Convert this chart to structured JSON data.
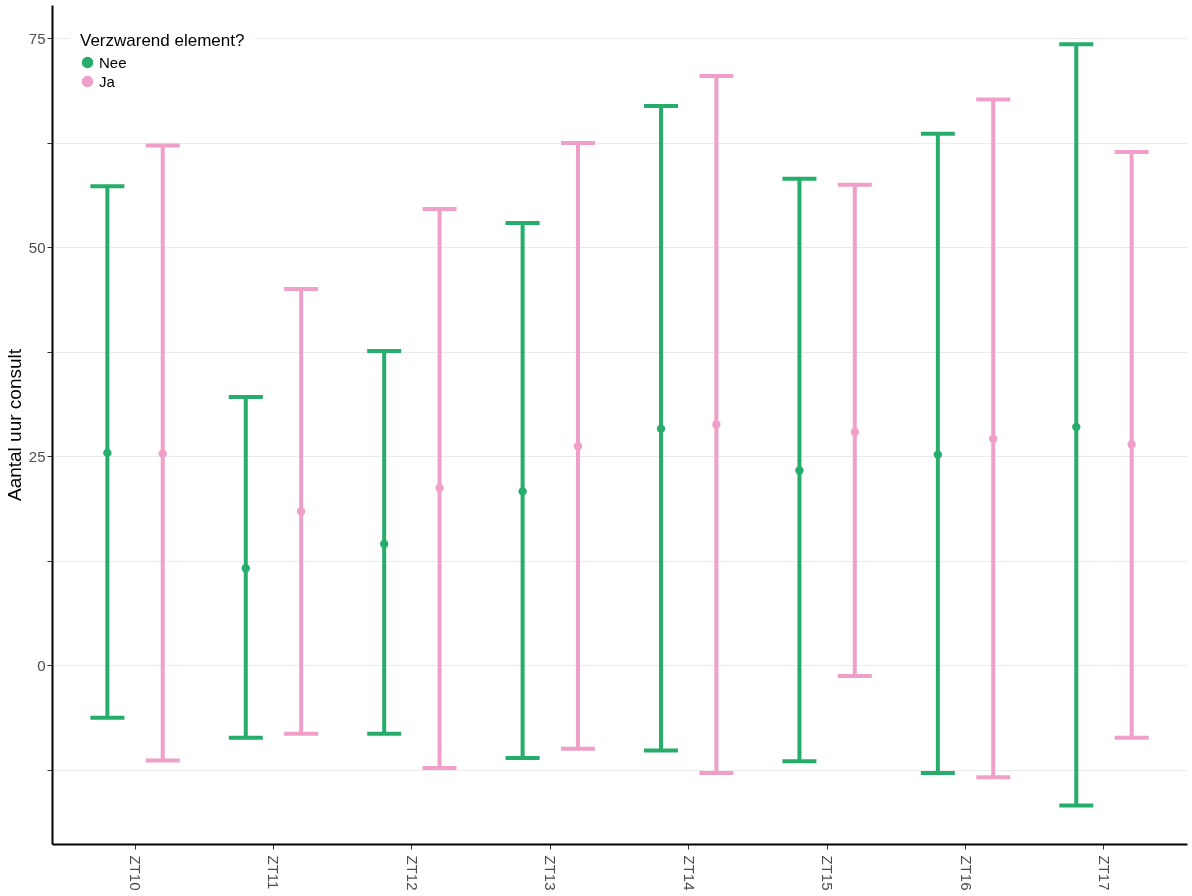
{
  "chart_data": {
    "type": "scatter",
    "ylabel": "Aantal uur consult",
    "legend_title": "Verzwarend element?",
    "categories": [
      "ZT10",
      "ZT11",
      "ZT12",
      "ZT13",
      "ZT14",
      "ZT15",
      "ZT16",
      "ZT17"
    ],
    "series": [
      {
        "name": "Nee",
        "color": "#27ad6b",
        "values": [
          25.4,
          11.6,
          14.5,
          20.8,
          28.3,
          23.3,
          25.2,
          28.5
        ],
        "errors": [
          [
            -6.3,
            57.3
          ],
          [
            -8.7,
            32.1
          ],
          [
            -8.2,
            37.6
          ],
          [
            -11.1,
            52.9
          ],
          [
            -10.2,
            66.9
          ],
          [
            -11.5,
            58.2
          ],
          [
            -12.9,
            63.6
          ],
          [
            -16.8,
            74.3
          ]
        ]
      },
      {
        "name": "Ja",
        "color": "#f0a0c8",
        "values": [
          25.3,
          18.4,
          21.2,
          26.2,
          28.8,
          27.9,
          27.1,
          26.4
        ],
        "errors": [
          [
            -11.4,
            62.2
          ],
          [
            -8.2,
            45.0
          ],
          [
            -12.3,
            54.6
          ],
          [
            -10.0,
            62.5
          ],
          [
            -12.9,
            70.5
          ],
          [
            -1.3,
            57.5
          ],
          [
            -13.4,
            67.7
          ],
          [
            -8.7,
            61.4
          ]
        ]
      }
    ],
    "ylim": [
      -21.4,
      79
    ],
    "yticks": [
      {
        "value": -12.5,
        "label": null
      },
      0,
      {
        "value": 12.5,
        "label": null
      },
      25,
      {
        "value": 37.5,
        "label": null
      },
      50,
      {
        "value": 62.5,
        "label": null
      },
      75
    ],
    "grid": "y",
    "legend": "top left",
    "marker": "circle"
  }
}
